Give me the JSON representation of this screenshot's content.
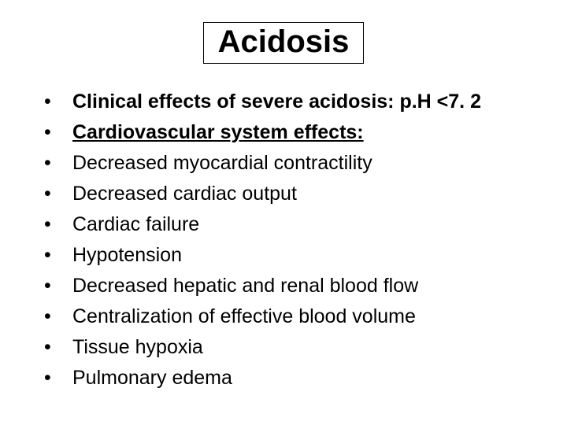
{
  "title": "Acidosis",
  "bullets": [
    {
      "text": "Clinical effects of severe acidosis: p.H <7. 2",
      "bold": true,
      "underline": false
    },
    {
      "text": "Cardiovascular system effects:",
      "bold": true,
      "underline": true
    },
    {
      "text": "Decreased myocardial contractility",
      "bold": false,
      "underline": false
    },
    {
      "text": "Decreased cardiac output",
      "bold": false,
      "underline": false
    },
    {
      "text": "Cardiac failure",
      "bold": false,
      "underline": false
    },
    {
      "text": "Hypotension",
      "bold": false,
      "underline": false
    },
    {
      "text": "Decreased hepatic and renal blood flow",
      "bold": false,
      "underline": false
    },
    {
      "text": "Centralization of effective blood volume",
      "bold": false,
      "underline": false
    },
    {
      "text": "Tissue hypoxia",
      "bold": false,
      "underline": false
    },
    {
      "text": "Pulmonary edema",
      "bold": false,
      "underline": false
    }
  ],
  "style": {
    "background_color": "#ffffff",
    "text_color": "#000000",
    "title_fontsize": 40,
    "body_fontsize": 25,
    "font_family": "Arial",
    "bullet_char": "•"
  }
}
